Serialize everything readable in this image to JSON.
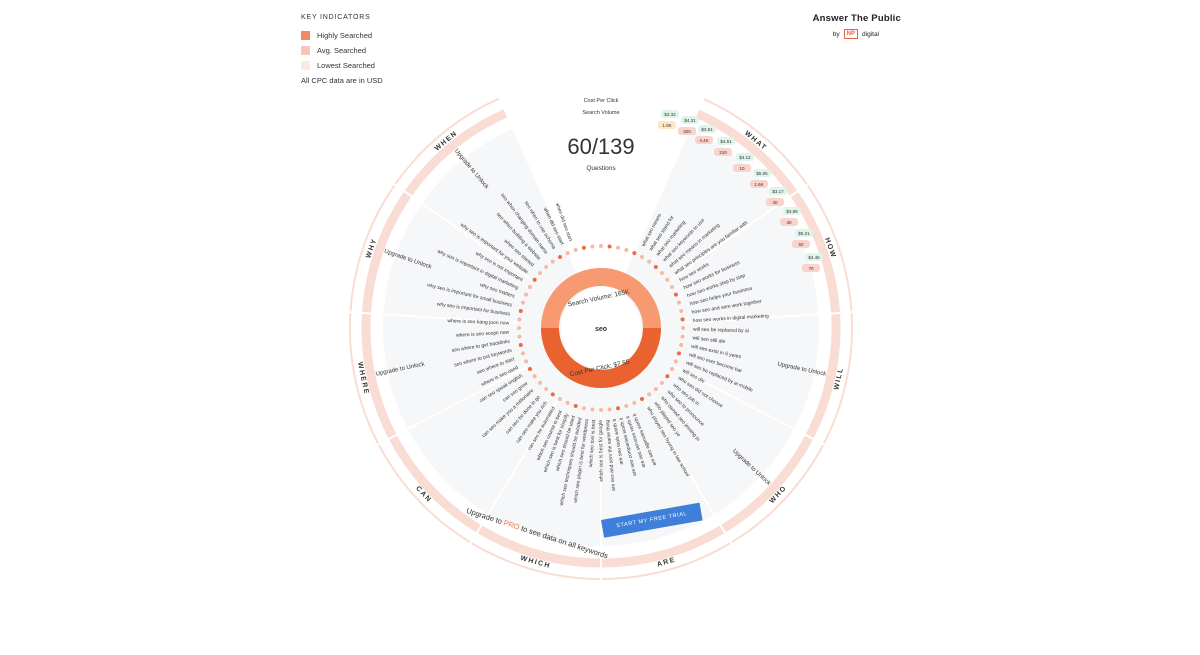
{
  "legend": {
    "title": "KEY INDICATORS",
    "items": [
      {
        "label": "Highly Searched",
        "color": "#f08a64"
      },
      {
        "label": "Avg. Searched",
        "color": "#f7c6b6"
      },
      {
        "label": "Lowest Searched",
        "color": "#fce9e3"
      }
    ],
    "note": "All CPC data are in USD"
  },
  "brand": {
    "name": "Answer The Public",
    "by": "by",
    "logo": "NP",
    "partner": "digital"
  },
  "header": {
    "cpc_label": "Cost Per Click",
    "volume_label": "Search Volume",
    "count": "60/139",
    "count_label": "Questions"
  },
  "center": {
    "keyword": "seo",
    "volume": "Search Volume: 165K",
    "cpc": "Cost Per Click: $7.55"
  },
  "segments": {
    "what": "WHAT",
    "how": "HOW",
    "will": "WILL",
    "who": "WHO",
    "are": "ARE",
    "which": "WHICH",
    "can": "CAN",
    "where": "WHERE",
    "why": "WHY",
    "when": "WHEN"
  },
  "locked": {
    "when": "Upgrade to Unlock",
    "why": "Upgrade to Unlock",
    "where": "Upgrade to Unlock",
    "will": "Upgrade to Unlock",
    "who": "Upgrade to Unlock"
  },
  "questions_right": [
    "what seo means",
    "what seo stand for",
    "what seo marketing",
    "what seo keywords to use",
    "what seo means in marketing",
    "what seo principles are you familiar with",
    "how seo works",
    "how seo works for business",
    "how seo works step by step",
    "how seo helps your business",
    "how seo and sem work together",
    "how seo works in digital marketing",
    "will seo be replaced by ai",
    "will seo still die",
    "will seo exist in 5 years",
    "will seo ever become bar",
    "will seo be replaced by ai mobile",
    "will seo die",
    "who seo did not choose",
    "who seo job in",
    "who seo to pronounce",
    "who owned seo jessing ju",
    "who played seo ye",
    "who played seo hyung in law school"
  ],
  "questions_bottom": [
    "are seo agencies worth it",
    "are seo services worth it",
    "are seo companies worth it",
    "are seo tools worth it",
    "are seo and sem the same thing",
    "which seo is best for google",
    "which seo tool is best",
    "which seo plugin is best for wordpress",
    "which seo techniques should be avoided",
    "which seo should be used",
    "which seo is best for shopify",
    "which seo course is best"
  ],
  "questions_left": [
    "can seo be automated",
    "can seo make you rich",
    "can seo be done in go",
    "can seo make you a millionaire",
    "can seo grow",
    "can seo speak english",
    "where is seo used",
    "seo where to start",
    "seo where to put keywords",
    "seo where to get backlinks",
    "where is seo soojin now",
    "where is seo kang joon now",
    "why seo is important for business",
    "why seo is important for small business",
    "why seo matters",
    "why seo is important in digital marketing",
    "why seo is not important",
    "why seo is important for your website",
    "when seo started",
    "seo when building a website",
    "seo when changing domain name",
    "seo when to use schema",
    "when did seo start",
    "when did seo start"
  ],
  "cpc_chips": [
    "$3.32",
    "$4.31",
    "$3.61",
    "$4.51",
    "$4.12",
    "$5.05",
    "$3.17",
    "$3.89",
    "$5.21",
    "$4.46"
  ],
  "volume_chips": [
    "1.9K",
    "320",
    "4.4K",
    "210",
    "10",
    "1.6K",
    "40",
    "30",
    "50",
    "70"
  ],
  "cta": {
    "upgrade_prefix": "Upgrade to",
    "pro": "PRO",
    "upgrade_suffix": "to see data on all keywords",
    "button": "START MY FREE TRIAL"
  }
}
